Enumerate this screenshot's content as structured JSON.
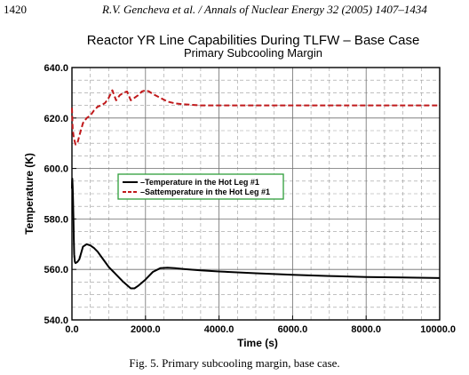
{
  "page": {
    "page_number": "1420",
    "journal_header": "R.V. Gencheva et al. / Annals of Nuclear Energy 32 (2005) 1407–1434",
    "caption": "Fig. 5. Primary subcooling margin, base case."
  },
  "chart_data": {
    "type": "line",
    "title": "Reactor YR Line Capabilities During TLFW – Base Case",
    "subtitle": "Primary Subcooling Margin",
    "xlabel": "Time (s)",
    "ylabel": "Temperature (K)",
    "xlim": [
      0,
      10000
    ],
    "ylim": [
      540,
      640
    ],
    "xticks": [
      0,
      2000,
      4000,
      6000,
      8000,
      10000
    ],
    "xtick_labels": [
      "0.0",
      "2000.0",
      "4000.0",
      "6000.0",
      "8000.0",
      "10000.0"
    ],
    "yticks": [
      540,
      560,
      580,
      600,
      620,
      640
    ],
    "ytick_labels": [
      "540.0",
      "560.0",
      "580.0",
      "600.0",
      "620.0",
      "640.0"
    ],
    "grid": true,
    "legend_position": "center-left",
    "legend_border_color": "#2e9e3a",
    "series": [
      {
        "name": "Temperature in the Hot Leg #1",
        "color": "#000000",
        "style": "solid",
        "x": [
          0,
          5,
          10,
          20,
          30,
          40,
          50,
          60,
          80,
          100,
          150,
          200,
          300,
          400,
          500,
          600,
          700,
          800,
          1000,
          1200,
          1400,
          1600,
          1700,
          1800,
          2000,
          2200,
          2400,
          2600,
          2800,
          3000,
          3500,
          4000,
          5000,
          6000,
          7000,
          8000,
          9000,
          10000
        ],
        "y": [
          592,
          595,
          596,
          593,
          588,
          580,
          572,
          566,
          563,
          562.5,
          563,
          564,
          569,
          570,
          569.5,
          568.5,
          567,
          565,
          561,
          558,
          555,
          552.5,
          552.5,
          553.5,
          556,
          559,
          560.5,
          560.7,
          560.5,
          560.2,
          559.6,
          559.2,
          558.5,
          557.9,
          557.4,
          557,
          556.8,
          556.6
        ]
      },
      {
        "name": "Sattemperature in the Hot Leg #1",
        "color": "#c0191b",
        "style": "dashed",
        "x": [
          0,
          20,
          50,
          100,
          150,
          200,
          300,
          400,
          500,
          600,
          700,
          800,
          900,
          1000,
          1100,
          1200,
          1300,
          1400,
          1500,
          1600,
          1700,
          1800,
          1900,
          2000,
          2100,
          2200,
          2400,
          2600,
          2800,
          3000,
          3500,
          4000,
          5000,
          6000,
          7000,
          8000,
          9000,
          10000
        ],
        "y": [
          624,
          616,
          612,
          609.5,
          610,
          613,
          618,
          620,
          621,
          623,
          624.5,
          625,
          626,
          628,
          631,
          627,
          629,
          630,
          630.5,
          627,
          628,
          629,
          630.5,
          631,
          630.5,
          629.5,
          628,
          626.5,
          625.8,
          625.5,
          625,
          625,
          625,
          625,
          625,
          625,
          625,
          625
        ]
      }
    ]
  }
}
